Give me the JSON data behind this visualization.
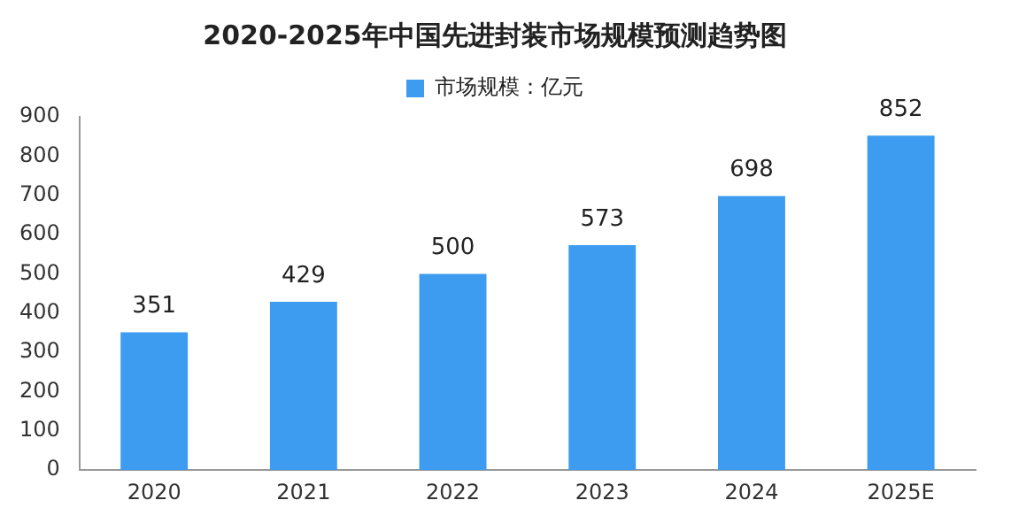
{
  "chart_data": {
    "type": "bar",
    "title": "2020-2025年中国先进封装市场规模预测趋势图",
    "categories": [
      "2020",
      "2021",
      "2022",
      "2023",
      "2024",
      "2025E"
    ],
    "series": [
      {
        "name": "市场规模：亿元",
        "color": "#3d9cf0",
        "values": [
          351,
          429,
          500,
          573,
          698,
          852
        ]
      }
    ],
    "ylim": [
      0,
      900
    ],
    "yticks": [
      0,
      100,
      200,
      300,
      400,
      500,
      600,
      700,
      800,
      900
    ],
    "grid": false,
    "legend": "top",
    "data_labels": true
  }
}
